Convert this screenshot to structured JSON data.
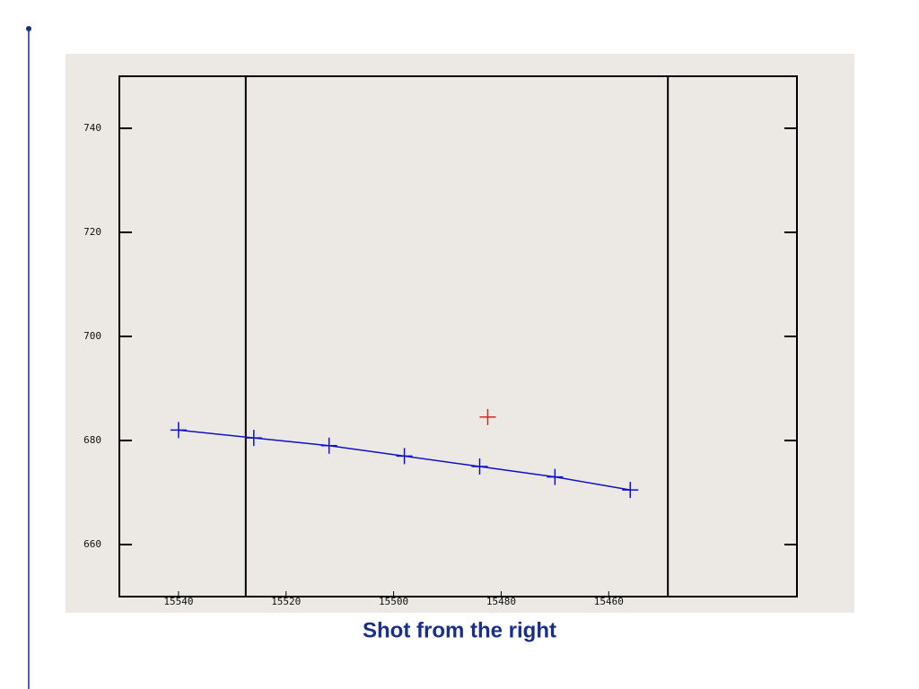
{
  "chart_data": {
    "type": "line",
    "caption": "Shot from the right",
    "xlim": [
      15551,
      15425
    ],
    "ylim": [
      650,
      750
    ],
    "xticks": [
      15540,
      15520,
      15500,
      15480,
      15460
    ],
    "yticks": [
      660,
      680,
      700,
      720,
      740
    ],
    "vlines": [
      15527.5,
      15449
    ],
    "series": [
      {
        "color": "#1010c8",
        "marker": "plus",
        "x": [
          15540,
          15526,
          15512,
          15498,
          15484,
          15470,
          15456
        ],
        "values": [
          682,
          680.5,
          679,
          677,
          675,
          673,
          670.5
        ]
      },
      {
        "color": "#dd2222",
        "marker": "plus",
        "x": [
          15482.5
        ],
        "values": [
          684.5
        ]
      }
    ]
  }
}
